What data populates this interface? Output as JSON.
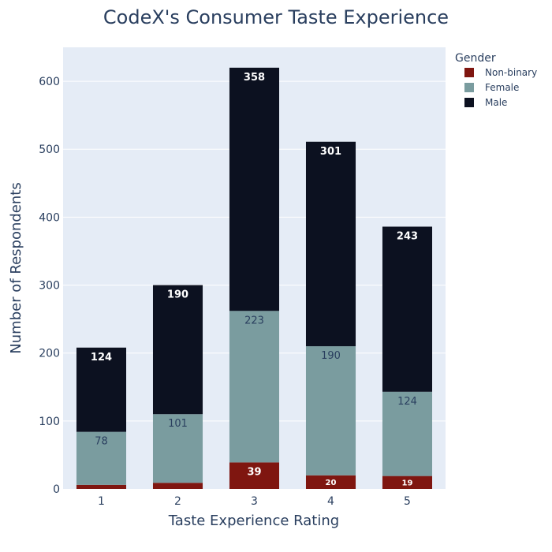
{
  "chart_data": {
    "type": "bar",
    "stacked": true,
    "title": "CodeX's Consumer Taste Experience",
    "xlabel": "Taste Experience Rating",
    "ylabel": "Number of Respondents",
    "categories": [
      "1",
      "2",
      "3",
      "4",
      "5"
    ],
    "ylim": [
      0,
      650
    ],
    "yticks": [
      "0",
      "100",
      "200",
      "300",
      "400",
      "500",
      "600"
    ],
    "legend": {
      "title": "Gender",
      "position": "top-right"
    },
    "grid": true,
    "series": [
      {
        "name": "Non-binary",
        "color": "#7f1610",
        "values": [
          6,
          9,
          39,
          20,
          19
        ],
        "labels": [
          "",
          "",
          "39",
          "20",
          "19"
        ]
      },
      {
        "name": "Female",
        "color": "#7a9c9f",
        "values": [
          78,
          101,
          223,
          190,
          124
        ],
        "labels": [
          "78",
          "101",
          "223",
          "190",
          "124"
        ]
      },
      {
        "name": "Male",
        "color": "#0c1120",
        "values": [
          124,
          190,
          358,
          301,
          243
        ],
        "labels": [
          "124",
          "190",
          "358",
          "301",
          "243"
        ]
      }
    ]
  }
}
